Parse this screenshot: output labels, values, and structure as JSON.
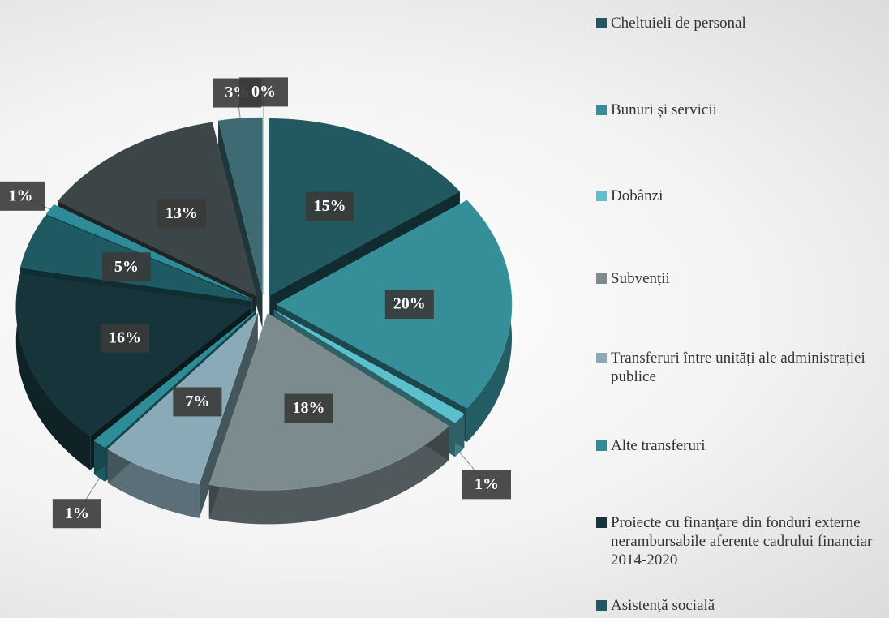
{
  "chart_data": {
    "type": "pie",
    "categories": [
      "Cheltuieli de personal",
      "Bunuri și servicii",
      "Dobânzi",
      "Subvenții",
      "Transferuri între unități ale administrației publice",
      "Alte transferuri",
      "Proiecte cu finanțare din fonduri externe nerambursabile aferente cadrului financiar 2014-2020",
      "Asistență socială",
      null,
      null,
      null,
      null
    ],
    "values": [
      15,
      20,
      1,
      18,
      7,
      1,
      16,
      5,
      1,
      13,
      3,
      0
    ],
    "value_labels": [
      "15%",
      "20%",
      "1%",
      "18%",
      "7%",
      "1%",
      "16%",
      "5%",
      "1%",
      "13%",
      "3%",
      "0%"
    ],
    "colors": [
      "#22585f",
      "#368f98",
      "#5cbfcc",
      "#7b8b8e",
      "#8aaab8",
      "#2e8b98",
      "#17343a",
      "#1f5a62",
      "#2e8b98",
      "#3c4547",
      "#3e6b73",
      "#2d7a85"
    ],
    "legend": "right"
  }
}
